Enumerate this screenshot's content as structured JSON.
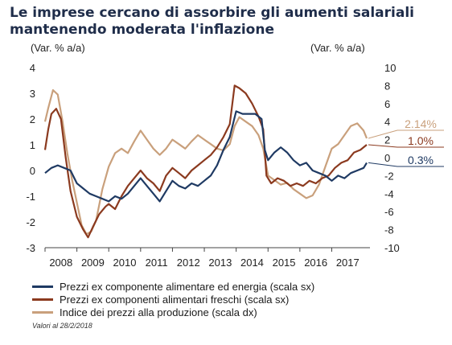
{
  "title_lines": [
    "Le imprese cercano di assorbire gli aumenti salariali",
    "mantenendo moderata l'inflazione"
  ],
  "note": "Valori al 28/2/2018",
  "colors": {
    "core": "#1f3a63",
    "fresh": "#8b3a1f",
    "ppi": "#c9a07c"
  },
  "chart_data": {
    "type": "line",
    "left_axis_label": "(Var. % a/a)",
    "right_axis_label": "(Var. % a/a)",
    "left_ylim": [
      -3,
      4
    ],
    "right_ylim": [
      -10,
      10
    ],
    "left_ticks": [
      "4",
      "3",
      "2",
      "1",
      "0",
      "-1",
      "-2",
      "-3"
    ],
    "right_ticks": [
      "10",
      "8",
      "6",
      "4",
      "2",
      "0",
      "-2",
      "-4",
      "-6",
      "-8",
      "-10"
    ],
    "x_ticks": [
      "2008",
      "2009",
      "2010",
      "2011",
      "2012",
      "2013",
      "2014",
      "2015",
      "2016",
      "2017"
    ],
    "xlim": [
      2008.0,
      2018.2
    ],
    "series": [
      {
        "name": "Prezzi ex componente alimentare ed energia (scala sx)",
        "axis": "left",
        "color_key": "core",
        "end_label": "0.3%",
        "points": [
          [
            2008.0,
            -0.1
          ],
          [
            2008.2,
            0.1
          ],
          [
            2008.4,
            0.2
          ],
          [
            2008.6,
            0.1
          ],
          [
            2008.8,
            0.0
          ],
          [
            2009.0,
            -0.5
          ],
          [
            2009.2,
            -0.7
          ],
          [
            2009.4,
            -0.9
          ],
          [
            2009.6,
            -1.0
          ],
          [
            2009.8,
            -1.1
          ],
          [
            2010.0,
            -1.2
          ],
          [
            2010.2,
            -1.0
          ],
          [
            2010.4,
            -1.1
          ],
          [
            2010.6,
            -0.9
          ],
          [
            2010.8,
            -0.6
          ],
          [
            2011.0,
            -0.3
          ],
          [
            2011.2,
            -0.6
          ],
          [
            2011.4,
            -0.9
          ],
          [
            2011.6,
            -1.2
          ],
          [
            2011.8,
            -0.8
          ],
          [
            2012.0,
            -0.4
          ],
          [
            2012.2,
            -0.6
          ],
          [
            2012.4,
            -0.7
          ],
          [
            2012.6,
            -0.5
          ],
          [
            2012.8,
            -0.6
          ],
          [
            2013.0,
            -0.4
          ],
          [
            2013.2,
            -0.2
          ],
          [
            2013.4,
            0.2
          ],
          [
            2013.6,
            0.8
          ],
          [
            2013.8,
            1.3
          ],
          [
            2014.0,
            2.3
          ],
          [
            2014.2,
            2.2
          ],
          [
            2014.4,
            2.2
          ],
          [
            2014.6,
            2.2
          ],
          [
            2014.8,
            2.0
          ],
          [
            2014.9,
            0.8
          ],
          [
            2015.0,
            0.4
          ],
          [
            2015.2,
            0.7
          ],
          [
            2015.4,
            0.9
          ],
          [
            2015.6,
            0.7
          ],
          [
            2015.8,
            0.4
          ],
          [
            2016.0,
            0.2
          ],
          [
            2016.2,
            0.3
          ],
          [
            2016.4,
            0.0
          ],
          [
            2016.6,
            -0.1
          ],
          [
            2016.8,
            -0.2
          ],
          [
            2017.0,
            -0.4
          ],
          [
            2017.2,
            -0.2
          ],
          [
            2017.4,
            -0.3
          ],
          [
            2017.6,
            -0.1
          ],
          [
            2017.8,
            0.0
          ],
          [
            2018.0,
            0.1
          ],
          [
            2018.1,
            0.3
          ]
        ]
      },
      {
        "name": "Prezzi ex componenti alimentari freschi (scala sx)",
        "axis": "left",
        "color_key": "fresh",
        "end_label": "1.0%",
        "points": [
          [
            2008.0,
            0.8
          ],
          [
            2008.1,
            1.6
          ],
          [
            2008.2,
            2.2
          ],
          [
            2008.35,
            2.4
          ],
          [
            2008.5,
            2.0
          ],
          [
            2008.65,
            0.5
          ],
          [
            2008.8,
            -0.8
          ],
          [
            2009.0,
            -1.8
          ],
          [
            2009.2,
            -2.3
          ],
          [
            2009.35,
            -2.6
          ],
          [
            2009.5,
            -2.2
          ],
          [
            2009.7,
            -1.7
          ],
          [
            2009.9,
            -1.4
          ],
          [
            2010.0,
            -1.3
          ],
          [
            2010.2,
            -1.5
          ],
          [
            2010.4,
            -1.0
          ],
          [
            2010.6,
            -0.6
          ],
          [
            2010.8,
            -0.3
          ],
          [
            2011.0,
            0.0
          ],
          [
            2011.2,
            -0.3
          ],
          [
            2011.4,
            -0.5
          ],
          [
            2011.6,
            -0.8
          ],
          [
            2011.8,
            -0.2
          ],
          [
            2012.0,
            0.1
          ],
          [
            2012.2,
            -0.1
          ],
          [
            2012.4,
            -0.3
          ],
          [
            2012.6,
            0.0
          ],
          [
            2012.8,
            0.2
          ],
          [
            2013.0,
            0.4
          ],
          [
            2013.2,
            0.6
          ],
          [
            2013.4,
            0.9
          ],
          [
            2013.6,
            1.3
          ],
          [
            2013.8,
            1.8
          ],
          [
            2013.95,
            3.3
          ],
          [
            2014.1,
            3.2
          ],
          [
            2014.3,
            3.0
          ],
          [
            2014.5,
            2.6
          ],
          [
            2014.7,
            2.1
          ],
          [
            2014.85,
            1.6
          ],
          [
            2014.95,
            -0.2
          ],
          [
            2015.1,
            -0.5
          ],
          [
            2015.3,
            -0.3
          ],
          [
            2015.5,
            -0.4
          ],
          [
            2015.7,
            -0.6
          ],
          [
            2015.9,
            -0.5
          ],
          [
            2016.1,
            -0.6
          ],
          [
            2016.3,
            -0.4
          ],
          [
            2016.5,
            -0.5
          ],
          [
            2016.7,
            -0.3
          ],
          [
            2016.9,
            -0.2
          ],
          [
            2017.1,
            0.1
          ],
          [
            2017.3,
            0.3
          ],
          [
            2017.5,
            0.4
          ],
          [
            2017.7,
            0.7
          ],
          [
            2017.9,
            0.8
          ],
          [
            2018.1,
            1.0
          ]
        ]
      },
      {
        "name": "Indice dei prezzi alla produzione (scala dx)",
        "axis": "right",
        "color_key": "ppi",
        "end_label": "2.14%",
        "points": [
          [
            2008.0,
            4.0
          ],
          [
            2008.1,
            5.5
          ],
          [
            2008.25,
            7.5
          ],
          [
            2008.4,
            7.0
          ],
          [
            2008.55,
            4.0
          ],
          [
            2008.7,
            0.5
          ],
          [
            2008.85,
            -2.5
          ],
          [
            2009.0,
            -5.0
          ],
          [
            2009.15,
            -7.5
          ],
          [
            2009.3,
            -8.5
          ],
          [
            2009.45,
            -8.2
          ],
          [
            2009.6,
            -7.0
          ],
          [
            2009.8,
            -3.5
          ],
          [
            2010.0,
            -1.0
          ],
          [
            2010.2,
            0.5
          ],
          [
            2010.4,
            1.0
          ],
          [
            2010.6,
            0.5
          ],
          [
            2010.8,
            1.8
          ],
          [
            2011.0,
            3.0
          ],
          [
            2011.2,
            2.0
          ],
          [
            2011.4,
            1.0
          ],
          [
            2011.6,
            0.3
          ],
          [
            2011.8,
            1.0
          ],
          [
            2012.0,
            2.0
          ],
          [
            2012.2,
            1.5
          ],
          [
            2012.4,
            1.0
          ],
          [
            2012.6,
            1.8
          ],
          [
            2012.8,
            2.5
          ],
          [
            2013.0,
            2.0
          ],
          [
            2013.2,
            1.5
          ],
          [
            2013.4,
            1.0
          ],
          [
            2013.6,
            0.8
          ],
          [
            2013.8,
            1.5
          ],
          [
            2013.95,
            3.5
          ],
          [
            2014.1,
            4.5
          ],
          [
            2014.3,
            4.0
          ],
          [
            2014.5,
            3.5
          ],
          [
            2014.7,
            2.5
          ],
          [
            2014.85,
            1.0
          ],
          [
            2015.0,
            -2.0
          ],
          [
            2015.2,
            -2.5
          ],
          [
            2015.4,
            -3.0
          ],
          [
            2015.6,
            -2.8
          ],
          [
            2015.8,
            -3.5
          ],
          [
            2016.0,
            -4.0
          ],
          [
            2016.2,
            -4.5
          ],
          [
            2016.4,
            -4.2
          ],
          [
            2016.6,
            -3.0
          ],
          [
            2016.8,
            -1.0
          ],
          [
            2017.0,
            1.0
          ],
          [
            2017.2,
            1.5
          ],
          [
            2017.4,
            2.5
          ],
          [
            2017.6,
            3.5
          ],
          [
            2017.8,
            3.8
          ],
          [
            2018.0,
            3.0
          ],
          [
            2018.1,
            2.14
          ]
        ]
      }
    ]
  }
}
